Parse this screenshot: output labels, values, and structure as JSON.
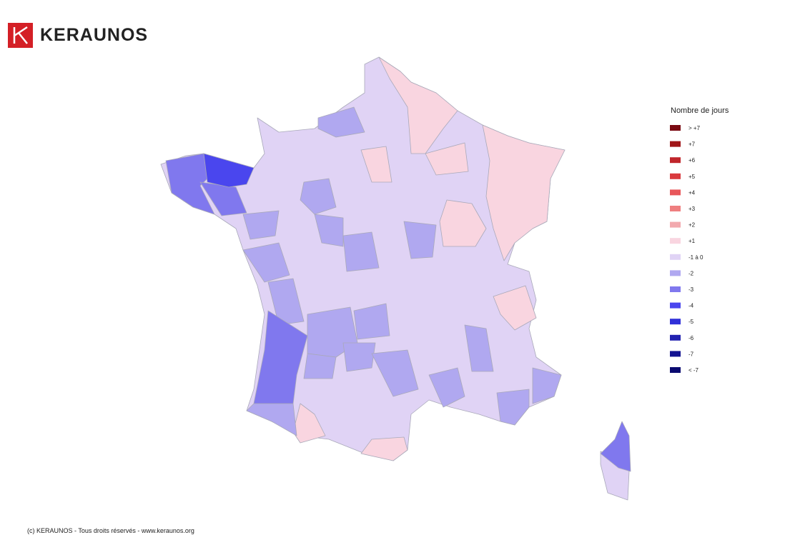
{
  "header": {
    "brand": "KERAUNOS"
  },
  "legend": {
    "title": "Nombre de jours",
    "items": [
      {
        "label": "> +7",
        "color": "#7a0a12"
      },
      {
        "label": "+7",
        "color": "#a01518"
      },
      {
        "label": "+6",
        "color": "#c0262b"
      },
      {
        "label": "+5",
        "color": "#d93a3e"
      },
      {
        "label": "+4",
        "color": "#e8575a"
      },
      {
        "label": "+3",
        "color": "#ef7f80"
      },
      {
        "label": "+2",
        "color": "#f2a9ae"
      },
      {
        "label": "+1",
        "color": "#f9d5e0"
      },
      {
        "label": "-1 à 0",
        "color": "#e0d3f5"
      },
      {
        "label": "-2",
        "color": "#b0a8f0"
      },
      {
        "label": "-3",
        "color": "#8078ee"
      },
      {
        "label": "-4",
        "color": "#4a46ee"
      },
      {
        "label": "-5",
        "color": "#3030d8"
      },
      {
        "label": "-6",
        "color": "#2222b0"
      },
      {
        "label": "-7",
        "color": "#121290"
      },
      {
        "label": "< -7",
        "color": "#0a0a70"
      }
    ]
  },
  "footer": {
    "text": "(c) KERAUNOS - Tous droits réservés - www.keraunos.org"
  }
}
